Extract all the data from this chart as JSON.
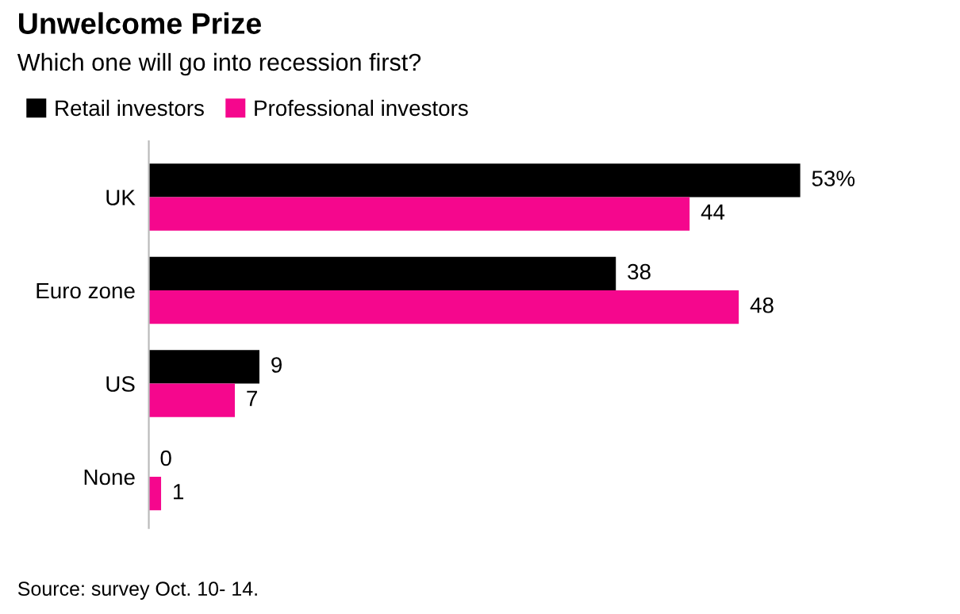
{
  "chart_data": {
    "type": "bar",
    "orientation": "horizontal",
    "title": "Unwelcome Prize",
    "subtitle": "Which one will go into recession first?",
    "categories": [
      "UK",
      "Euro zone",
      "US",
      "None"
    ],
    "series": [
      {
        "name": "Retail investors",
        "color": "#000000",
        "values": [
          53,
          38,
          9,
          0
        ],
        "value_labels": [
          "53%",
          "38",
          "9",
          "0"
        ]
      },
      {
        "name": "Professional investors",
        "color": "#f5078d",
        "values": [
          44,
          48,
          7,
          1
        ],
        "value_labels": [
          "44",
          "48",
          "7",
          "1"
        ]
      }
    ],
    "legend": "top left",
    "grid": false,
    "annotations": [
      "Source: survey Oct. 10- 14."
    ]
  }
}
